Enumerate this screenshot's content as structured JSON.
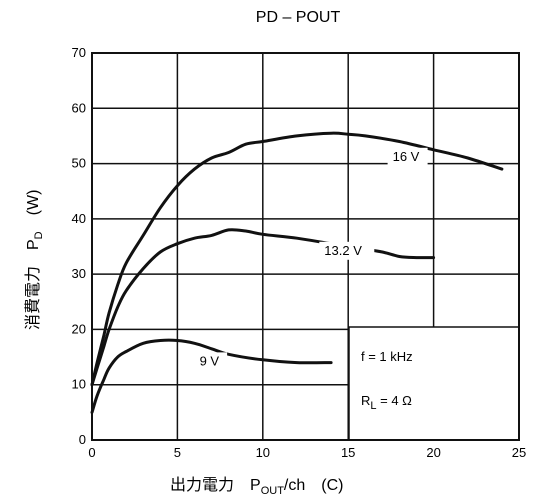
{
  "chart_data": {
    "type": "line",
    "title": "PD – POUT",
    "xlabel": {
      "main": "出力電力　P",
      "sub": "OUT",
      "tail": "/ch　(C)"
    },
    "ylabel": {
      "main": "消費電力　P",
      "sub": "D",
      "tail": "(W)"
    },
    "xlim": [
      0,
      25
    ],
    "ylim": [
      0,
      70
    ],
    "xticks": [
      0,
      5,
      10,
      15,
      20,
      25
    ],
    "yticks": [
      0,
      10,
      20,
      30,
      40,
      50,
      60,
      70
    ],
    "grid": true,
    "conditions": {
      "freq": "f = 1 kHz",
      "load_main": "R",
      "load_sub": "L",
      "load_tail": " = 4 Ω"
    },
    "series": [
      {
        "name": "16 V",
        "x": [
          0,
          0.3,
          0.7,
          1,
          1.5,
          2,
          3,
          4,
          5,
          6,
          7,
          8,
          9,
          10,
          12,
          14,
          15,
          16,
          18,
          20,
          22,
          24
        ],
        "y": [
          10,
          14,
          19,
          23,
          28,
          32,
          37,
          42,
          46,
          49,
          51,
          52,
          53.5,
          54,
          55,
          55.5,
          55.3,
          55,
          54,
          52.5,
          51,
          49
        ]
      },
      {
        "name": "13.2 V",
        "x": [
          0,
          0.3,
          0.7,
          1,
          1.5,
          2,
          3,
          4,
          5,
          6,
          7,
          8,
          9,
          10,
          12,
          14,
          16,
          17,
          18,
          19,
          20
        ],
        "y": [
          10,
          13,
          17,
          20,
          24,
          27,
          31,
          34,
          35.5,
          36.5,
          37,
          38,
          37.8,
          37.2,
          36.5,
          35.5,
          34.5,
          34,
          33.2,
          33,
          33
        ]
      },
      {
        "name": "9 V",
        "x": [
          0,
          0.3,
          0.7,
          1,
          1.5,
          2,
          3,
          4,
          5,
          6,
          7,
          8,
          10,
          12,
          14
        ],
        "y": [
          5,
          8,
          11,
          13,
          15,
          16,
          17.5,
          18,
          18,
          17.5,
          16.5,
          15.5,
          14.5,
          14,
          14
        ]
      }
    ],
    "annotations": [
      {
        "text": "16 V",
        "x": 17.6,
        "y": 50.5
      },
      {
        "text": "13.2 V",
        "x": 13.6,
        "y": 33.5
      },
      {
        "text": "9 V",
        "x": 6.3,
        "y": 13.5
      }
    ]
  }
}
